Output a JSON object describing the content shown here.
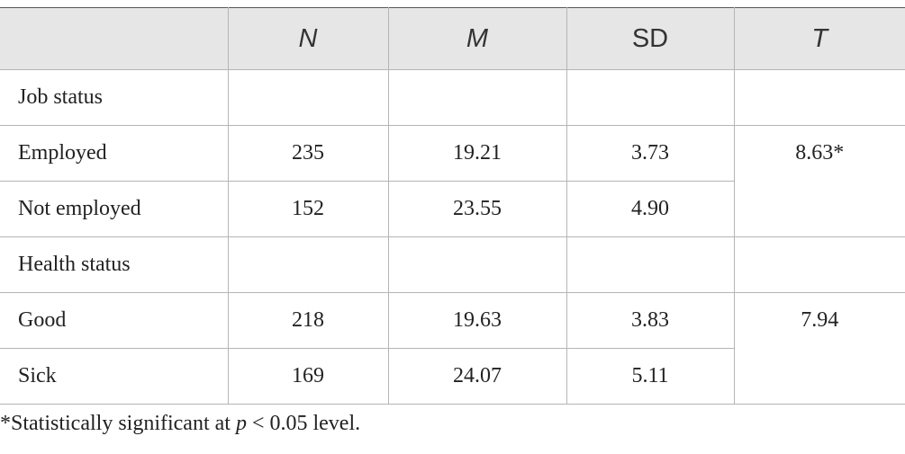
{
  "table": {
    "header": [
      "N",
      "M",
      "SD",
      "T"
    ],
    "rows": [
      {
        "label": "Job status"
      },
      {
        "label": "Employed",
        "n": "235",
        "m": "19.21",
        "sd": "3.73",
        "t": "8.63*"
      },
      {
        "label": "Not employed",
        "n": "152",
        "m": "23.55",
        "sd": "4.90"
      },
      {
        "label": "Health status"
      },
      {
        "label": "Good",
        "n": "218",
        "m": "19.63",
        "sd": "3.83",
        "t": "7.94"
      },
      {
        "label": "Sick",
        "n": "169",
        "m": "24.07",
        "sd": "5.11"
      }
    ]
  },
  "footnote": {
    "before": "*Statistically significant at ",
    "italic": "p",
    "after": " < 0.05 level."
  }
}
